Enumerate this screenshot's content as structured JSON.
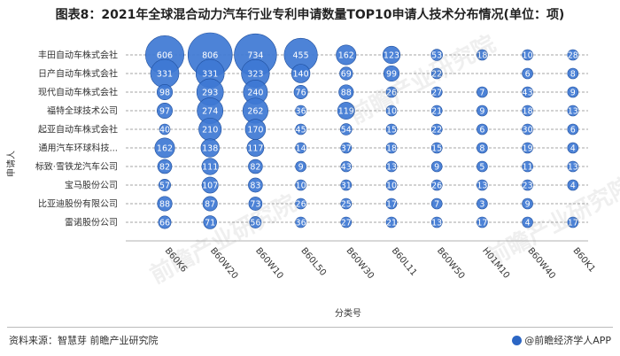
{
  "title": "图表8：2021年全球混合动力汽车行业专利申请数量TOP10申请人技术分布情况(单位：项)",
  "footer": {
    "source": "资料来源：智慧芽 前瞻产业研究院",
    "brand": "@前瞻经济学人APP"
  },
  "watermark": "前瞻产业研究院",
  "colors": {
    "bubble": "#3e78d4",
    "bubble_stroke": "#1f4f9e",
    "grid": "#888888",
    "label": "#ffffff"
  },
  "chart_data": {
    "type": "scatter",
    "subtype": "bubble",
    "xlabel": "分类号",
    "ylabel": "申请人",
    "grid": true,
    "categories_x": [
      "B60K6",
      "B60W20",
      "B60W10",
      "B60L50",
      "B60W30",
      "B60L11",
      "B60W50",
      "H01M10",
      "B60W40",
      "B60K1"
    ],
    "categories_y": [
      "丰田自动车株式会社",
      "日产自动车株式会社",
      "现代自动车株式会社",
      "福特全球技术公司",
      "起亚自动车株式会社",
      "通用汽车环球科技...",
      "标致·雪铁龙汽车公司",
      "宝马股份公司",
      "比亚迪股份有限公司",
      "雷诺股份公司"
    ],
    "values": [
      [
        606,
        806,
        734,
        455,
        162,
        123,
        53,
        18,
        10,
        28
      ],
      [
        331,
        331,
        323,
        140,
        69,
        99,
        22,
        null,
        6,
        8
      ],
      [
        98,
        293,
        240,
        76,
        88,
        26,
        27,
        7,
        43,
        9
      ],
      [
        97,
        274,
        262,
        36,
        119,
        10,
        21,
        9,
        18,
        13
      ],
      [
        40,
        210,
        170,
        45,
        54,
        15,
        22,
        6,
        30,
        6
      ],
      [
        162,
        138,
        117,
        14,
        37,
        18,
        15,
        8,
        19,
        4
      ],
      [
        82,
        111,
        82,
        9,
        43,
        13,
        9,
        5,
        11,
        13
      ],
      [
        57,
        107,
        83,
        10,
        31,
        10,
        26,
        13,
        23,
        4
      ],
      [
        88,
        87,
        73,
        26,
        25,
        17,
        7,
        3,
        9,
        null
      ],
      [
        66,
        71,
        56,
        36,
        27,
        21,
        13,
        17,
        4,
        17
      ]
    ]
  }
}
